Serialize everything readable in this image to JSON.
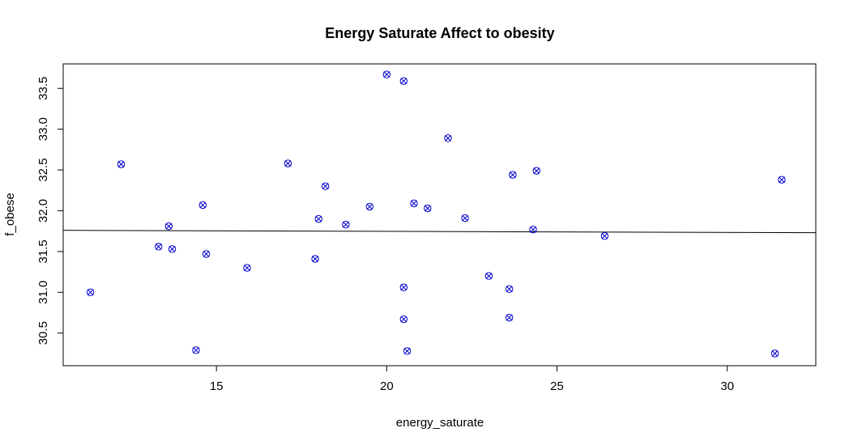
{
  "chart_data": {
    "type": "scatter",
    "title": "Energy Saturate Affect to obesity",
    "xlabel": "energy_saturate",
    "ylabel": "f_obese",
    "xlim": [
      10.5,
      32.6
    ],
    "ylim": [
      30.1,
      33.8
    ],
    "x_ticks": [
      15,
      20,
      25,
      30
    ],
    "y_ticks": [
      30.5,
      31.0,
      31.5,
      32.0,
      32.5,
      33.0,
      33.5
    ],
    "x_tick_labels": [
      "15",
      "20",
      "25",
      "30"
    ],
    "y_tick_labels": [
      "30.5",
      "31.0",
      "31.5",
      "32.0",
      "32.5",
      "33.0",
      "33.5"
    ],
    "grid": false,
    "marker": "x-over-circle",
    "point_color": "#0000cc",
    "line_color": "#000000",
    "points": [
      {
        "x": 11.3,
        "y": 31.0
      },
      {
        "x": 12.2,
        "y": 32.57
      },
      {
        "x": 13.3,
        "y": 31.56
      },
      {
        "x": 13.6,
        "y": 31.81
      },
      {
        "x": 13.7,
        "y": 31.53
      },
      {
        "x": 14.4,
        "y": 30.29
      },
      {
        "x": 14.6,
        "y": 32.07
      },
      {
        "x": 14.7,
        "y": 31.47
      },
      {
        "x": 15.9,
        "y": 31.3
      },
      {
        "x": 17.1,
        "y": 32.58
      },
      {
        "x": 17.9,
        "y": 31.41
      },
      {
        "x": 18.0,
        "y": 31.9
      },
      {
        "x": 18.2,
        "y": 32.3
      },
      {
        "x": 18.8,
        "y": 31.83
      },
      {
        "x": 19.5,
        "y": 32.05
      },
      {
        "x": 20.0,
        "y": 33.67
      },
      {
        "x": 20.5,
        "y": 33.59
      },
      {
        "x": 20.5,
        "y": 31.06
      },
      {
        "x": 20.5,
        "y": 30.67
      },
      {
        "x": 20.6,
        "y": 30.28
      },
      {
        "x": 20.8,
        "y": 32.09
      },
      {
        "x": 21.2,
        "y": 32.03
      },
      {
        "x": 21.8,
        "y": 32.89
      },
      {
        "x": 22.3,
        "y": 31.91
      },
      {
        "x": 23.0,
        "y": 31.2
      },
      {
        "x": 23.6,
        "y": 31.04
      },
      {
        "x": 23.6,
        "y": 30.69
      },
      {
        "x": 23.7,
        "y": 32.44
      },
      {
        "x": 24.3,
        "y": 31.77
      },
      {
        "x": 24.4,
        "y": 32.49
      },
      {
        "x": 26.4,
        "y": 31.69
      },
      {
        "x": 31.4,
        "y": 30.25
      },
      {
        "x": 31.6,
        "y": 32.38
      }
    ],
    "fit_line": {
      "x": [
        10.5,
        32.6
      ],
      "y": [
        31.76,
        31.73
      ]
    }
  }
}
